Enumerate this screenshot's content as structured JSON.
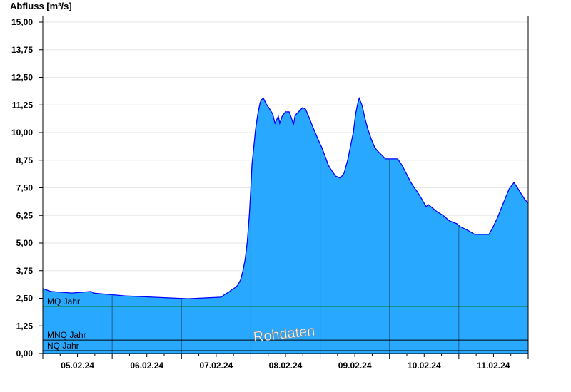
{
  "chart_data": {
    "type": "area",
    "title": "",
    "ylabel": "Abfluss [m³/s]",
    "xlabel": "",
    "ylim": [
      0,
      15
    ],
    "xlim": [
      "2024-02-05T00:00",
      "2024-02-12T00:00"
    ],
    "yticks": [
      "0,00",
      "1,25",
      "2,50",
      "3,75",
      "5,00",
      "6,25",
      "7,50",
      "8,75",
      "10,00",
      "11,25",
      "12,50",
      "13,75",
      "15,00"
    ],
    "xticks": [
      "05.02.24",
      "06.02.24",
      "07.02.24",
      "08.02.24",
      "09.02.24",
      "10.02.24",
      "11.02.24"
    ],
    "grid": true,
    "fill_color": "#29a8ff",
    "line_color": "#0000ff",
    "watermark": "Rohdaten",
    "reference_lines": [
      {
        "name": "MQ Jahr",
        "value": 2.13,
        "color": "#007a00"
      },
      {
        "name": "MNQ Jahr",
        "value": 0.61,
        "color": "#000000"
      },
      {
        "name": "NQ Jahr",
        "value": 0.13,
        "color": "#000000"
      }
    ],
    "series": [
      {
        "points": [
          [
            "2024-02-05T00:00",
            2.94
          ],
          [
            "2024-02-05T02:45",
            2.81
          ],
          [
            "2024-02-05T10:00",
            2.74
          ],
          [
            "2024-02-05T16:45",
            2.81
          ],
          [
            "2024-02-05T17:30",
            2.74
          ],
          [
            "2024-02-06T04:30",
            2.61
          ],
          [
            "2024-02-07T02:15",
            2.48
          ],
          [
            "2024-02-07T13:45",
            2.55
          ],
          [
            "2024-02-07T15:00",
            2.68
          ],
          [
            "2024-02-07T16:15",
            2.77
          ],
          [
            "2024-02-07T17:30",
            2.9
          ],
          [
            "2024-02-07T18:45",
            3.0
          ],
          [
            "2024-02-07T19:30",
            3.1
          ],
          [
            "2024-02-07T20:30",
            3.35
          ],
          [
            "2024-02-07T21:15",
            3.74
          ],
          [
            "2024-02-07T22:00",
            4.23
          ],
          [
            "2024-02-07T22:45",
            5.03
          ],
          [
            "2024-02-07T23:30",
            6.32
          ],
          [
            "2024-02-07T23:55",
            7.29
          ],
          [
            "2024-02-08T00:25",
            8.58
          ],
          [
            "2024-02-08T01:10",
            9.55
          ],
          [
            "2024-02-08T01:40",
            10.19
          ],
          [
            "2024-02-08T02:25",
            10.84
          ],
          [
            "2024-02-08T03:10",
            11.32
          ],
          [
            "2024-02-08T03:35",
            11.48
          ],
          [
            "2024-02-08T04:20",
            11.55
          ],
          [
            "2024-02-08T05:20",
            11.29
          ],
          [
            "2024-02-08T06:20",
            11.1
          ],
          [
            "2024-02-08T07:35",
            10.84
          ],
          [
            "2024-02-08T08:20",
            10.42
          ],
          [
            "2024-02-08T09:30",
            10.74
          ],
          [
            "2024-02-08T10:00",
            10.42
          ],
          [
            "2024-02-08T10:50",
            10.74
          ],
          [
            "2024-02-08T12:00",
            10.94
          ],
          [
            "2024-02-08T13:15",
            10.94
          ],
          [
            "2024-02-08T14:00",
            10.68
          ],
          [
            "2024-02-08T14:45",
            10.35
          ],
          [
            "2024-02-08T15:15",
            10.74
          ],
          [
            "2024-02-08T15:45",
            10.84
          ],
          [
            "2024-02-08T17:00",
            11.0
          ],
          [
            "2024-02-08T17:55",
            11.13
          ],
          [
            "2024-02-08T18:55",
            11.06
          ],
          [
            "2024-02-08T20:10",
            10.68
          ],
          [
            "2024-02-08T21:10",
            10.35
          ],
          [
            "2024-02-08T22:10",
            10.03
          ],
          [
            "2024-02-08T23:25",
            9.65
          ],
          [
            "2024-02-09T00:35",
            9.32
          ],
          [
            "2024-02-09T01:35",
            8.97
          ],
          [
            "2024-02-09T02:50",
            8.52
          ],
          [
            "2024-02-09T04:05",
            8.26
          ],
          [
            "2024-02-09T05:20",
            8.03
          ],
          [
            "2024-02-09T07:00",
            7.94
          ],
          [
            "2024-02-09T08:15",
            8.16
          ],
          [
            "2024-02-09T09:30",
            8.74
          ],
          [
            "2024-02-09T10:30",
            9.39
          ],
          [
            "2024-02-09T11:30",
            10.03
          ],
          [
            "2024-02-09T12:15",
            10.84
          ],
          [
            "2024-02-09T13:00",
            11.32
          ],
          [
            "2024-02-09T13:30",
            11.55
          ],
          [
            "2024-02-09T14:30",
            11.23
          ],
          [
            "2024-02-09T15:25",
            10.68
          ],
          [
            "2024-02-09T16:25",
            10.19
          ],
          [
            "2024-02-09T17:40",
            9.71
          ],
          [
            "2024-02-09T18:55",
            9.32
          ],
          [
            "2024-02-09T20:10",
            9.13
          ],
          [
            "2024-02-09T21:25",
            8.97
          ],
          [
            "2024-02-09T22:35",
            8.81
          ],
          [
            "2024-02-10T02:50",
            8.81
          ],
          [
            "2024-02-10T04:20",
            8.52
          ],
          [
            "2024-02-10T06:00",
            8.1
          ],
          [
            "2024-02-10T07:15",
            7.77
          ],
          [
            "2024-02-10T08:30",
            7.52
          ],
          [
            "2024-02-10T09:45",
            7.29
          ],
          [
            "2024-02-10T11:00",
            7.03
          ],
          [
            "2024-02-10T12:40",
            6.65
          ],
          [
            "2024-02-10T13:25",
            6.74
          ],
          [
            "2024-02-10T14:40",
            6.61
          ],
          [
            "2024-02-10T16:25",
            6.42
          ],
          [
            "2024-02-10T18:25",
            6.26
          ],
          [
            "2024-02-10T20:50",
            6.0
          ],
          [
            "2024-02-10T23:20",
            5.87
          ],
          [
            "2024-02-11T00:30",
            5.74
          ],
          [
            "2024-02-11T03:00",
            5.58
          ],
          [
            "2024-02-11T05:30",
            5.39
          ],
          [
            "2024-02-11T10:25",
            5.39
          ],
          [
            "2024-02-11T11:40",
            5.68
          ],
          [
            "2024-02-11T13:25",
            6.16
          ],
          [
            "2024-02-11T14:55",
            6.65
          ],
          [
            "2024-02-11T16:05",
            7.03
          ],
          [
            "2024-02-11T17:25",
            7.45
          ],
          [
            "2024-02-11T18:20",
            7.61
          ],
          [
            "2024-02-11T19:05",
            7.74
          ],
          [
            "2024-02-11T20:05",
            7.55
          ],
          [
            "2024-02-11T21:35",
            7.23
          ],
          [
            "2024-02-11T22:50",
            6.97
          ],
          [
            "2024-02-12T00:00",
            6.81
          ]
        ]
      }
    ]
  }
}
